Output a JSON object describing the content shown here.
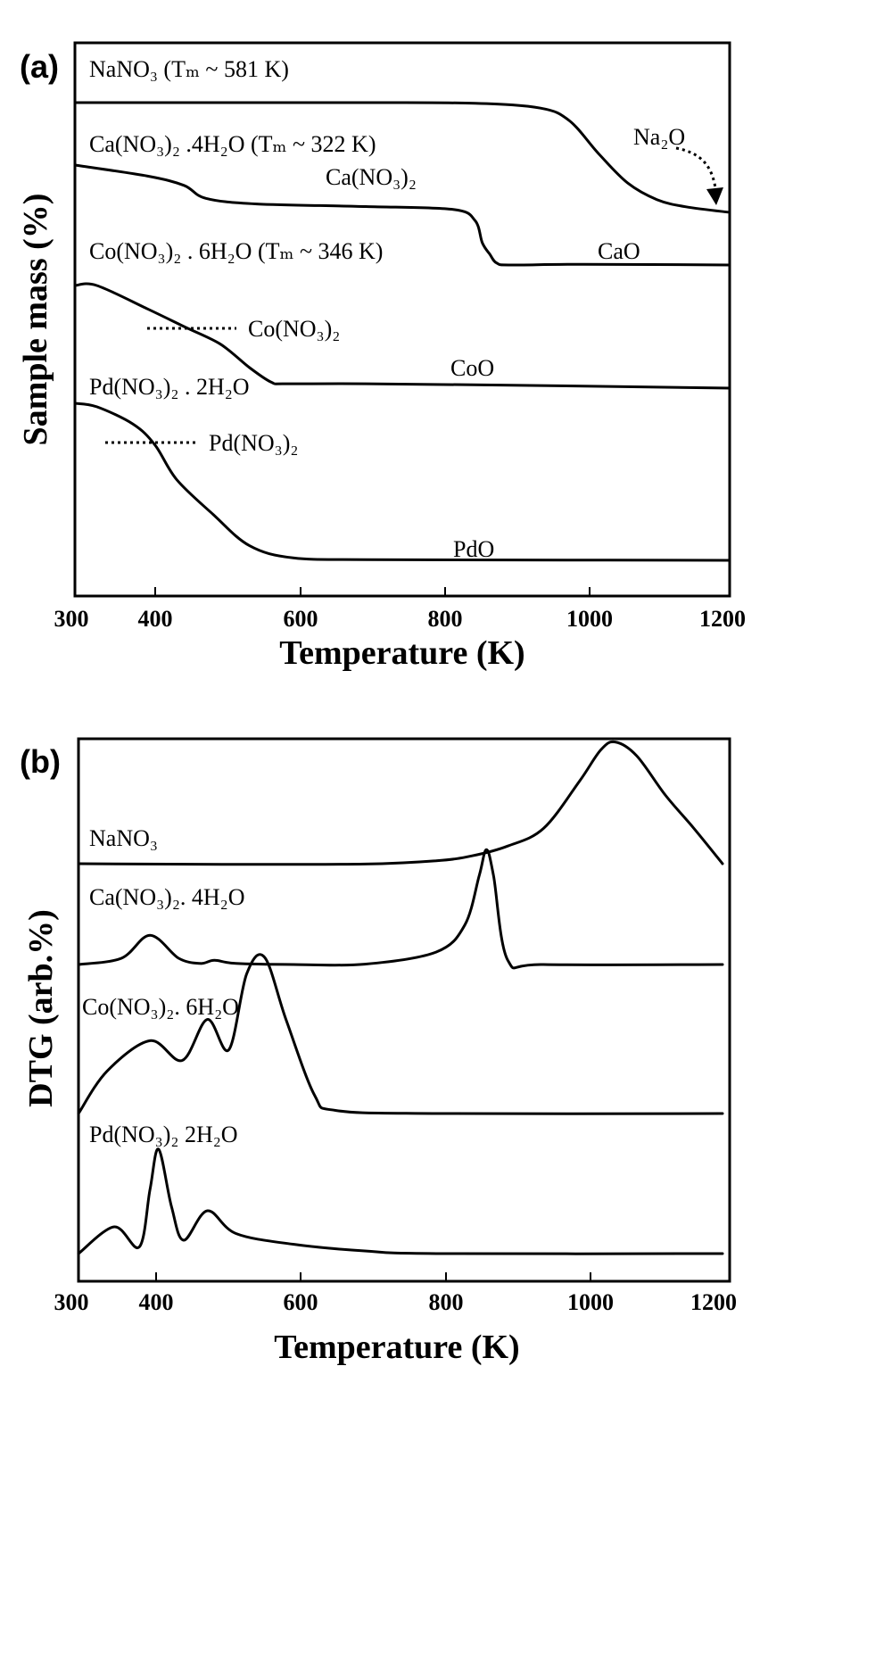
{
  "chart_data": [
    {
      "type": "line",
      "panel_label": "(a)",
      "xlabel": "Temperature (K)",
      "ylabel": "Sample mass (%)",
      "xlim": [
        300,
        1200
      ],
      "xticks": [
        "300",
        "400",
        "600",
        "800",
        "1000",
        "1200"
      ],
      "series": [
        {
          "name": "NaNO₃ (Tₘ ~ 581 K)",
          "x": [
            300,
            700,
            850,
            940,
            980,
            1020,
            1060,
            1100,
            1140,
            1200
          ],
          "y": [
            100,
            100,
            99.8,
            98.5,
            95,
            86,
            78,
            73.5,
            71.5,
            70
          ]
        },
        {
          "name": "Ca(NO₃)₂ .4H₂O (Tₘ ~ 322 K)",
          "x": [
            300,
            400,
            450,
            480,
            550,
            700,
            820,
            850,
            860,
            870,
            880,
            900,
            1000,
            1200
          ],
          "y": [
            100,
            97,
            94.5,
            91,
            89.5,
            88.8,
            88,
            85,
            79,
            76,
            73.5,
            73,
            73.2,
            73
          ]
        },
        {
          "name": "Co(NO₃)₂ . 6H₂O (Tₘ ~ 346 K)",
          "x": [
            300,
            330,
            400,
            450,
            500,
            540,
            570,
            590,
            700,
            900,
            1200
          ],
          "y": [
            100,
            100,
            92,
            86,
            80,
            72,
            67,
            66.5,
            66.5,
            66,
            65
          ]
        },
        {
          "name": "Pd(NO₃)₂ . 2H₂O",
          "x": [
            300,
            330,
            380,
            410,
            440,
            490,
            540,
            600,
            700,
            900,
            1200
          ],
          "y": [
            100,
            99,
            94,
            88,
            78,
            68,
            59,
            55.5,
            55,
            54.9,
            54.8
          ]
        }
      ],
      "annotations": [
        {
          "text": "Na₂O"
        },
        {
          "text": "Ca(NO₃)₂"
        },
        {
          "text": "CaO"
        },
        {
          "text": "Co(NO₃)₂"
        },
        {
          "text": "CoO"
        },
        {
          "text": "Pd(NO₃)₂"
        },
        {
          "text": "PdO"
        }
      ]
    },
    {
      "type": "line",
      "panel_label": "(b)",
      "xlabel": "Temperature (K)",
      "ylabel": "DTG (arb.%)",
      "xlim": [
        300,
        1200
      ],
      "xticks": [
        "300",
        "400",
        "600",
        "800",
        "1000",
        "1200"
      ],
      "series": [
        {
          "name": "NaNO₃",
          "x": [
            300,
            500,
            700,
            800,
            850,
            900,
            950,
            1000,
            1030,
            1050,
            1080,
            1120,
            1160,
            1200
          ],
          "y": [
            0,
            -0.3,
            -0.2,
            1.5,
            4,
            9,
            18,
            42,
            58,
            62,
            55,
            35,
            18,
            0
          ]
        },
        {
          "name": "Ca(NO₃)₂. 4H₂O",
          "x": [
            300,
            360,
            400,
            440,
            470,
            490,
            520,
            600,
            700,
            800,
            840,
            860,
            870,
            880,
            900,
            950,
            1200
          ],
          "y": [
            0,
            6,
            28,
            6,
            1,
            4,
            1,
            0,
            0.3,
            12,
            38,
            85,
            110,
            85,
            4,
            0,
            0
          ]
        },
        {
          "name": "Co(NO₃)₂. 6H₂O",
          "x": [
            300,
            340,
            400,
            445,
            480,
            510,
            535,
            560,
            590,
            630,
            660,
            800,
            1200
          ],
          "y": [
            0,
            28,
            48,
            35,
            62,
            42,
            92,
            103,
            62,
            12,
            2,
            0,
            0
          ]
        },
        {
          "name": "Pd(NO₃)₂ 2H₂O",
          "x": [
            300,
            350,
            385,
            400,
            412,
            430,
            447,
            480,
            520,
            600,
            700,
            800,
            1200
          ],
          "y": [
            0,
            20,
            5,
            48,
            78,
            35,
            10,
            32,
            15,
            7,
            2,
            0,
            0
          ]
        }
      ]
    }
  ]
}
